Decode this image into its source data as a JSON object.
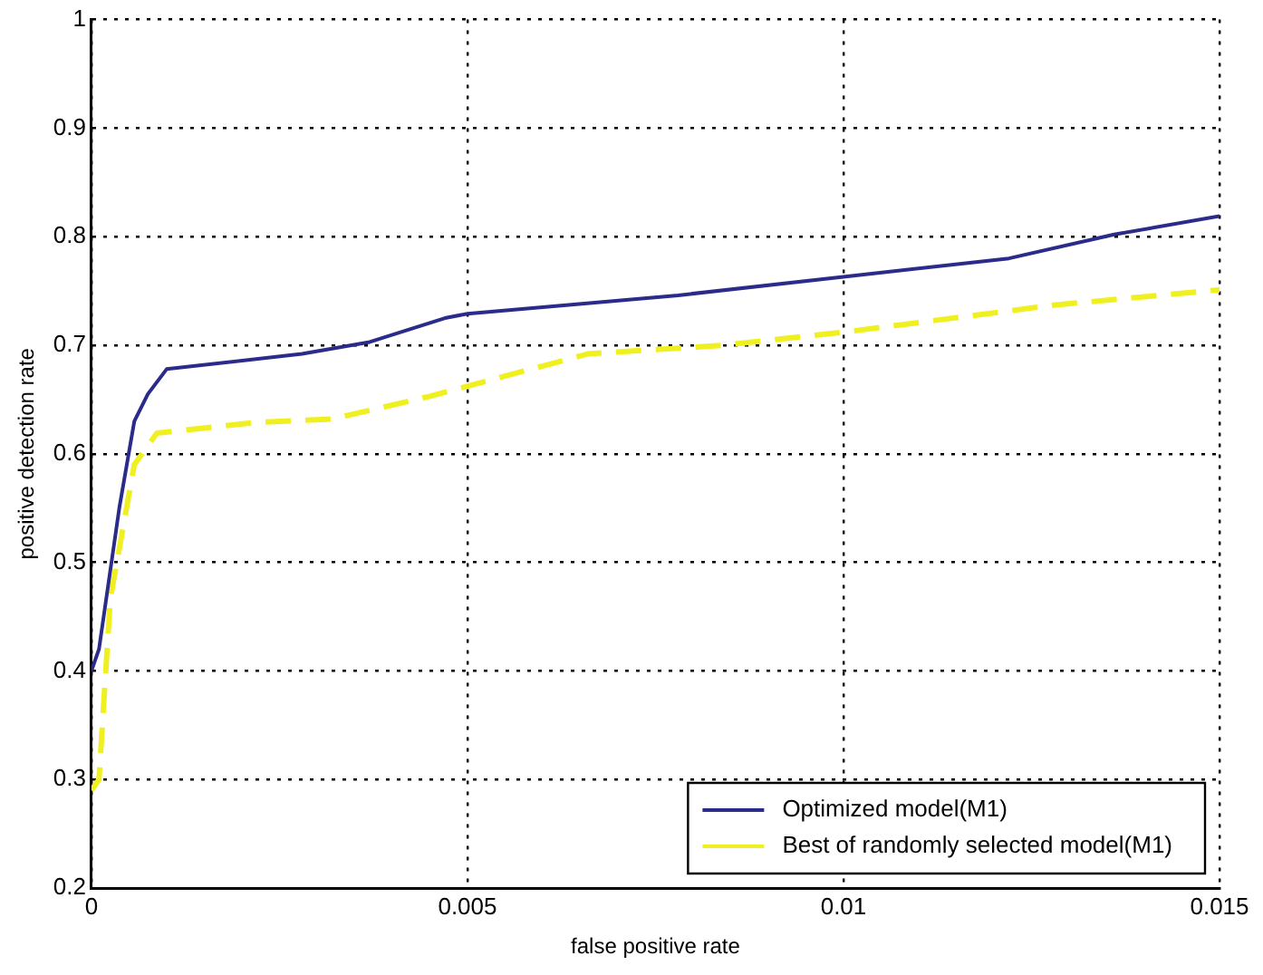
{
  "chart_data": {
    "type": "line",
    "xlabel": "false positive rate",
    "ylabel": "positive detection rate",
    "xlim": [
      0,
      0.015
    ],
    "xticks": [
      0,
      0.005,
      0.01,
      0.015
    ],
    "ylim": [
      0.2,
      1
    ],
    "yticks": [
      0.2,
      0.3,
      0.4,
      0.5,
      0.6,
      0.7,
      0.8,
      0.9,
      1
    ],
    "grid": true,
    "legend": "bottom right",
    "marker": "none",
    "series": [
      {
        "name": "Optimized model(M1)",
        "color": "#2b2b8c",
        "line_style": "solid",
        "x": [
          0,
          0.0001,
          0.00037,
          0.00057,
          0.00075,
          0.001,
          0.0028,
          0.0037,
          0.0047,
          0.005,
          0.0078,
          0.01,
          0.0122,
          0.0136,
          0.015
        ],
        "values": [
          0.4,
          0.42,
          0.55,
          0.63,
          0.655,
          0.678,
          0.692,
          0.703,
          0.725,
          0.729,
          0.746,
          0.763,
          0.78,
          0.802,
          0.819
        ]
      },
      {
        "name": "Best of randomly selected model(M1)",
        "color": "#f0f020",
        "line_style": "dashed",
        "x": [
          0,
          0.0001,
          0.00025,
          0.00057,
          0.00087,
          0.0022,
          0.0032,
          0.0045,
          0.0066,
          0.0084,
          0.01,
          0.0128,
          0.015
        ],
        "values": [
          0.29,
          0.3,
          0.466,
          0.59,
          0.619,
          0.629,
          0.632,
          0.653,
          0.692,
          0.7,
          0.712,
          0.737,
          0.751
        ]
      }
    ]
  }
}
